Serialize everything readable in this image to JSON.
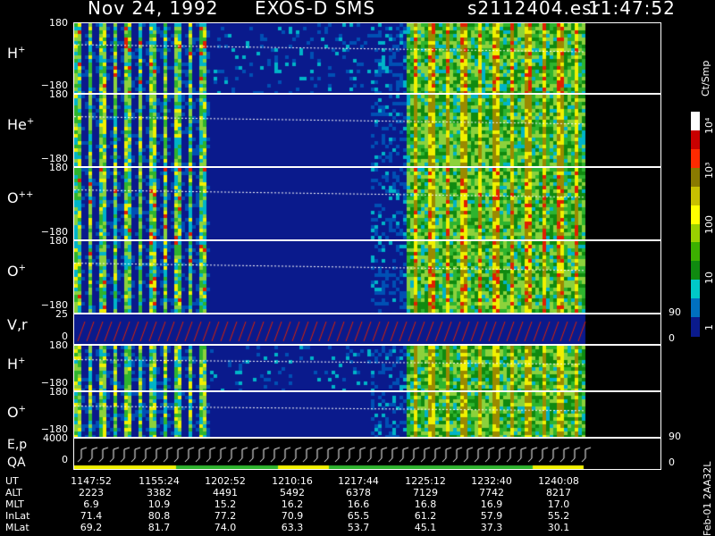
{
  "header": {
    "date": "Nov 24, 1992",
    "instrument": "EXOS-D SMS",
    "file": "s2112404.esr",
    "time": "11:47:52"
  },
  "panels": [
    {
      "id": "h1",
      "label_main": "H",
      "label_sup": "+",
      "top_tick": "180",
      "bottom_tick": "−180"
    },
    {
      "id": "he1",
      "label_main": "He",
      "label_sup": "+",
      "top_tick": "180",
      "bottom_tick": "−180"
    },
    {
      "id": "opp",
      "label_main": "O",
      "label_sup": "++",
      "top_tick": "180",
      "bottom_tick": "−180"
    },
    {
      "id": "op1",
      "label_main": "O",
      "label_sup": "+",
      "top_tick": "180",
      "bottom_tick": "−180"
    }
  ],
  "vr_panel": {
    "label": "V,r",
    "top_tick": "25",
    "bottom_tick": "0",
    "right_top": "90",
    "right_bottom": "0"
  },
  "lower_panels": [
    {
      "id": "h2",
      "label_main": "H",
      "label_sup": "+",
      "top_tick": "180",
      "bottom_tick": "−180"
    },
    {
      "id": "o2",
      "label_main": "O",
      "label_sup": "+",
      "top_tick": "180",
      "bottom_tick": "−180",
      "right_bottom": "90"
    }
  ],
  "ep_panel": {
    "label1": "E,p",
    "label2": "QA",
    "top_tick": "4000",
    "bottom_tick": "0",
    "right_bottom": "0"
  },
  "colorbar": {
    "units": "Ct/Smp",
    "labels": [
      "10⁴",
      "10³",
      "100",
      "10",
      "1"
    ],
    "colors": [
      "#ffffff",
      "#c80000",
      "#ff2a00",
      "#8a7a00",
      "#c8c000",
      "#ffff00",
      "#9ad000",
      "#3cb000",
      "#108a10",
      "#00c8c8",
      "#0070c0",
      "#0a1a8c"
    ]
  },
  "table": {
    "rows": [
      {
        "label": "UT",
        "values": [
          "1147:52",
          "1155:24",
          "1202:52",
          "1210:16",
          "1217:44",
          "1225:12",
          "1232:40",
          "1240:08"
        ]
      },
      {
        "label": "ALT",
        "values": [
          "2223",
          "3382",
          "4491",
          "5492",
          "6378",
          "7129",
          "7742",
          "8217"
        ]
      },
      {
        "label": "MLT",
        "values": [
          "6.9",
          "10.9",
          "15.2",
          "16.2",
          "16.6",
          "16.8",
          "16.9",
          "17.0"
        ]
      },
      {
        "label": "InLat",
        "values": [
          "71.4",
          "80.8",
          "77.2",
          "70.9",
          "65.5",
          "61.2",
          "57.9",
          "55.2"
        ]
      },
      {
        "label": "MLat",
        "values": [
          "69.2",
          "81.7",
          "74.0",
          "63.3",
          "53.7",
          "45.1",
          "37.3",
          "30.1"
        ]
      }
    ]
  },
  "footer_vertical": "Feb-01 2AA32L"
}
